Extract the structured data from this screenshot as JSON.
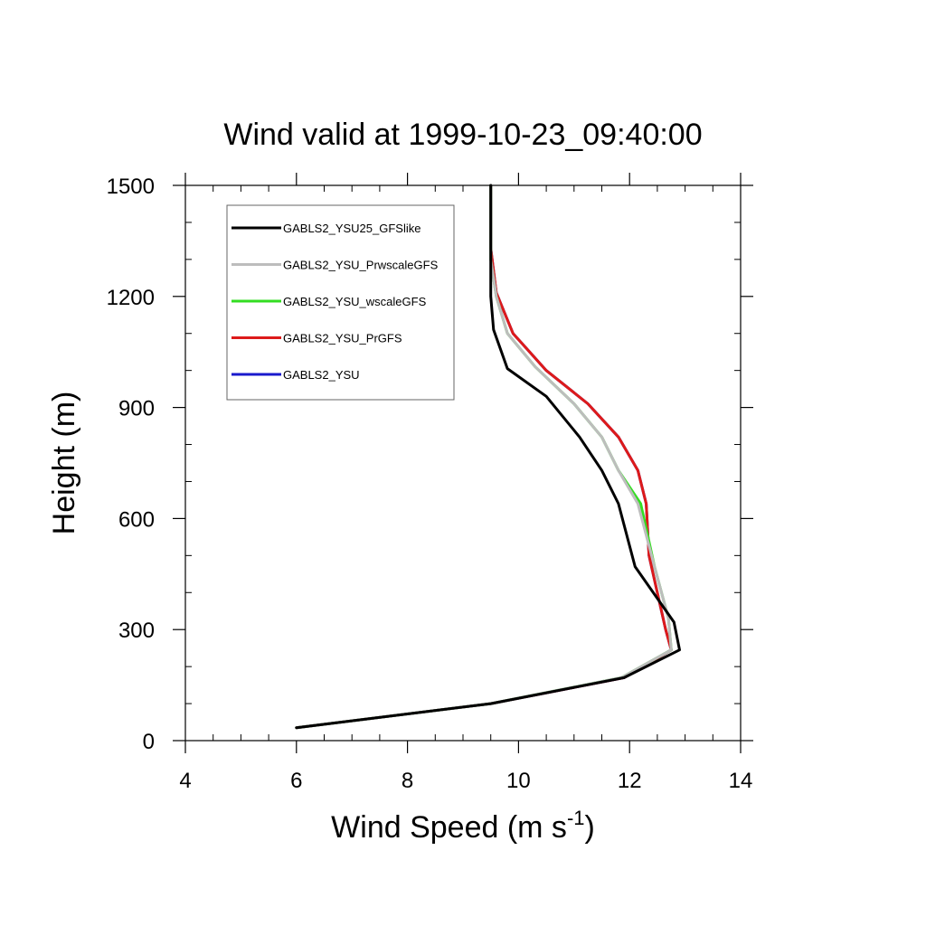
{
  "chart_data": {
    "type": "line",
    "title": "Wind valid at 1999-10-23_09:40:00",
    "xlabel": "Wind Speed (m s",
    "xlabel_sup": "-1",
    "xlabel_close": ")",
    "ylabel": "Height (m)",
    "xlim": [
      4,
      14
    ],
    "ylim": [
      0,
      1500
    ],
    "xticks": [
      4,
      6,
      8,
      10,
      12,
      14
    ],
    "yticks": [
      0,
      300,
      600,
      900,
      1200,
      1500
    ],
    "xtick_labels": [
      "4",
      "6",
      "8",
      "10",
      "12",
      "14"
    ],
    "ytick_labels": [
      "0",
      "300",
      "600",
      "900",
      "1200",
      "1500"
    ],
    "grid": false,
    "legend_position": "top-left",
    "series": [
      {
        "name": "GABLS2_YSU25_GFSlike",
        "color": "#000000",
        "points": [
          [
            6.0,
            35
          ],
          [
            9.5,
            100
          ],
          [
            11.9,
            170
          ],
          [
            12.9,
            245
          ],
          [
            12.8,
            320
          ],
          [
            12.1,
            470
          ],
          [
            11.8,
            640
          ],
          [
            11.5,
            730
          ],
          [
            11.1,
            820
          ],
          [
            10.5,
            930
          ],
          [
            9.8,
            1005
          ],
          [
            9.55,
            1110
          ],
          [
            9.5,
            1200
          ],
          [
            9.5,
            1300
          ],
          [
            9.5,
            1500
          ]
        ]
      },
      {
        "name": "GABLS2_YSU_PrwscaleGFS",
        "color": "#bdbdbd",
        "points": [
          [
            6.0,
            35
          ],
          [
            9.5,
            100
          ],
          [
            11.85,
            170
          ],
          [
            12.75,
            245
          ],
          [
            12.7,
            330
          ],
          [
            12.45,
            470
          ],
          [
            12.15,
            640
          ],
          [
            11.8,
            730
          ],
          [
            11.5,
            820
          ],
          [
            11.0,
            910
          ],
          [
            10.3,
            1010
          ],
          [
            9.8,
            1100
          ],
          [
            9.6,
            1200
          ],
          [
            9.5,
            1300
          ],
          [
            9.5,
            1500
          ]
        ]
      },
      {
        "name": "GABLS2_YSU_wscaleGFS",
        "color": "#33dd22",
        "points": [
          [
            6.0,
            35
          ],
          [
            9.5,
            100
          ],
          [
            11.85,
            170
          ],
          [
            12.75,
            245
          ],
          [
            12.7,
            330
          ],
          [
            12.45,
            470
          ],
          [
            12.2,
            640
          ],
          [
            11.8,
            730
          ],
          [
            11.5,
            820
          ],
          [
            11.0,
            910
          ],
          [
            10.3,
            1010
          ],
          [
            9.8,
            1100
          ],
          [
            9.6,
            1200
          ],
          [
            9.5,
            1300
          ],
          [
            9.5,
            1500
          ]
        ]
      },
      {
        "name": "GABLS2_YSU_PrGFS",
        "color": "#dd1a1a",
        "points": [
          [
            6.0,
            35
          ],
          [
            9.5,
            100
          ],
          [
            11.9,
            170
          ],
          [
            12.75,
            245
          ],
          [
            12.65,
            300
          ],
          [
            12.5,
            400
          ],
          [
            12.35,
            500
          ],
          [
            12.3,
            640
          ],
          [
            12.15,
            730
          ],
          [
            11.8,
            820
          ],
          [
            11.25,
            910
          ],
          [
            10.5,
            1000
          ],
          [
            9.9,
            1100
          ],
          [
            9.6,
            1210
          ],
          [
            9.5,
            1330
          ],
          [
            9.5,
            1500
          ]
        ]
      },
      {
        "name": "GABLS2_YSU",
        "color": "#1a1acc",
        "points": [
          [
            6.0,
            35
          ],
          [
            9.5,
            100
          ],
          [
            11.9,
            170
          ],
          [
            12.75,
            245
          ],
          [
            12.65,
            300
          ],
          [
            12.5,
            400
          ],
          [
            12.35,
            500
          ],
          [
            12.3,
            640
          ],
          [
            12.15,
            730
          ],
          [
            11.8,
            820
          ],
          [
            11.25,
            910
          ],
          [
            10.5,
            1000
          ],
          [
            9.9,
            1100
          ],
          [
            9.6,
            1210
          ],
          [
            9.5,
            1330
          ],
          [
            9.5,
            1500
          ]
        ]
      }
    ]
  }
}
